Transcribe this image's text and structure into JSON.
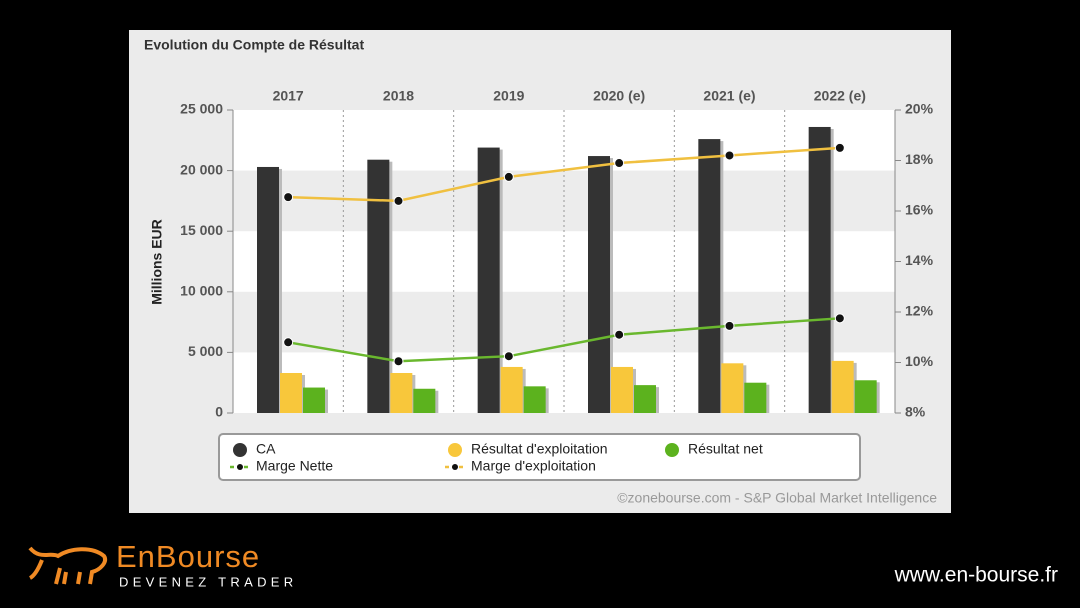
{
  "chart_data": {
    "type": "bar",
    "title": "Evolution du Compte de Résultat",
    "y_label": "Millions EUR",
    "source": "©zonebourse.com - S&P Global Market Intelligence",
    "categories": [
      "2017",
      "2018",
      "2019",
      "2020 (e)",
      "2021 (e)",
      "2022 (e)"
    ],
    "series": [
      {
        "name": "CA",
        "type": "bar",
        "color": "#333333",
        "values": [
          20300,
          20900,
          21900,
          21200,
          22600,
          23600
        ]
      },
      {
        "name": "Résultat d'exploitation",
        "type": "bar",
        "color": "#f8c73b",
        "values": [
          3300,
          3300,
          3800,
          3800,
          4100,
          4300
        ]
      },
      {
        "name": "Résultat net",
        "type": "bar",
        "color": "#5cb21e",
        "values": [
          2100,
          2000,
          2200,
          2300,
          2500,
          2700
        ]
      },
      {
        "name": "Marge Nette",
        "type": "line",
        "axis": "y2",
        "color": "#6ab82e",
        "values": [
          10.8,
          10.05,
          10.25,
          11.1,
          11.45,
          11.75
        ]
      },
      {
        "name": "Marge d'exploitation",
        "type": "line",
        "axis": "y2",
        "color": "#f0c040",
        "values": [
          16.55,
          16.4,
          17.35,
          17.9,
          18.2,
          18.5
        ]
      }
    ],
    "ylim": [
      0,
      25000
    ],
    "yticks": [
      0,
      {
        "value": 5000,
        "label": "5 000"
      },
      {
        "value": 10000,
        "label": "10 000"
      },
      {
        "value": 15000,
        "label": "15 000"
      },
      {
        "value": 20000,
        "label": "20 000"
      },
      {
        "value": 25000,
        "label": "25 000"
      }
    ],
    "y2lim": [
      8,
      20
    ],
    "y2ticks": [
      {
        "value": 8,
        "label": "8%"
      },
      {
        "value": 10,
        "label": "10%"
      },
      {
        "value": 12,
        "label": "12%"
      },
      {
        "value": 14,
        "label": "14%"
      },
      {
        "value": 16,
        "label": "16%"
      },
      {
        "value": 18,
        "label": "18%"
      },
      {
        "value": 20,
        "label": "20%"
      }
    ],
    "grid": true,
    "legend": "bottom"
  },
  "branding": {
    "logo": "EnBourse",
    "tagline": "DEVENEZ TRADER",
    "url": "www.en-bourse.fr"
  }
}
